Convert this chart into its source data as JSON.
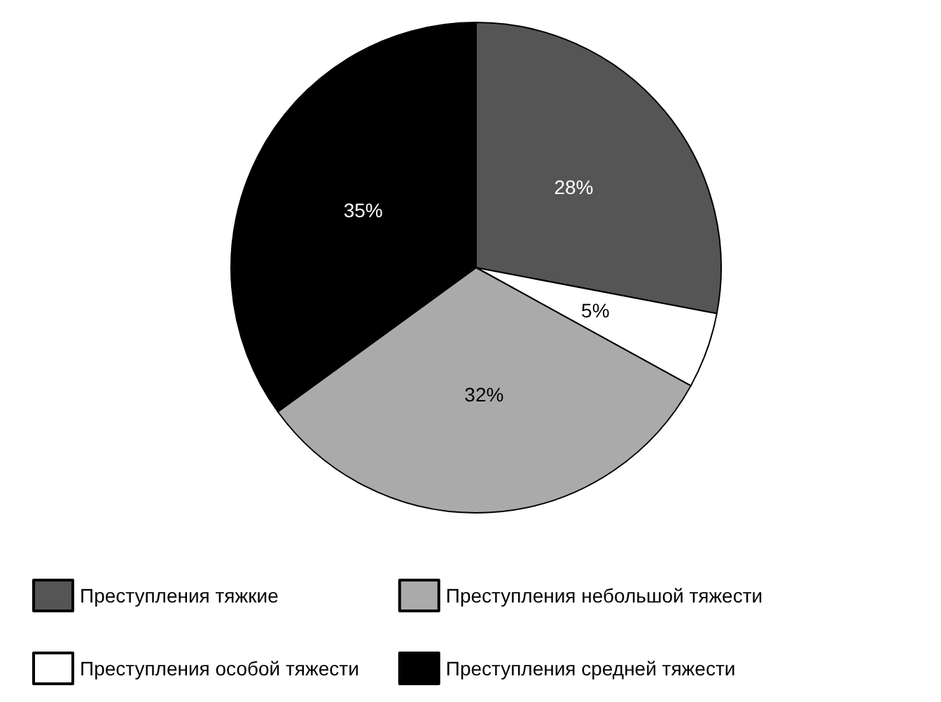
{
  "chart_data": {
    "type": "pie",
    "categories": [
      "Преступления тяжкие",
      "Преступления особой тяжести",
      "Преступления небольшой тяжести",
      "Преступления средней тяжести"
    ],
    "values": [
      28,
      5,
      32,
      35
    ],
    "value_labels": [
      "28%",
      "5%",
      "32%",
      "35%"
    ],
    "colors": [
      "#555555",
      "#ffffff",
      "#aaaaaa",
      "#000000"
    ],
    "legend": "bottom"
  }
}
